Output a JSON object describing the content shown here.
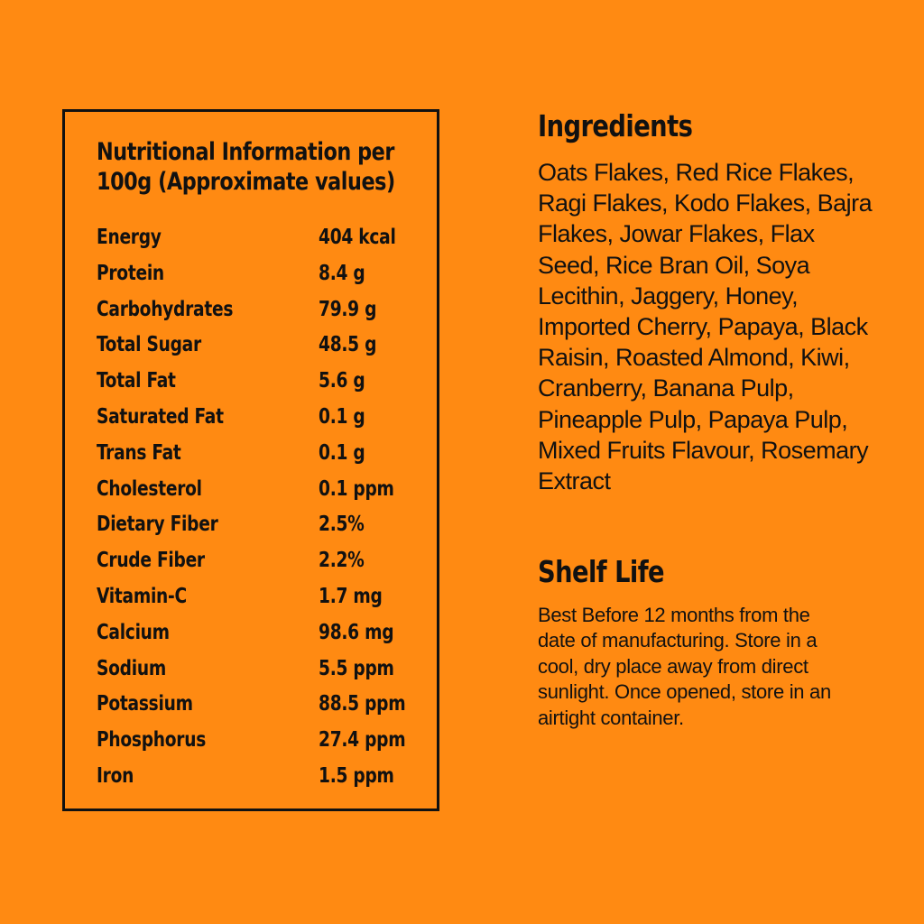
{
  "nutrition": {
    "title": "Nutritional Information per 100g (Approximate values)",
    "items": [
      {
        "name": "Energy",
        "value": "404 kcal"
      },
      {
        "name": "Protein",
        "value": "8.4 g"
      },
      {
        "name": "Carbohydrates",
        "value": "79.9 g"
      },
      {
        "name": "Total Sugar",
        "value": "48.5 g"
      },
      {
        "name": "Total Fat",
        "value": "5.6 g"
      },
      {
        "name": "Saturated Fat",
        "value": "0.1 g"
      },
      {
        "name": "Trans Fat",
        "value": "0.1 g"
      },
      {
        "name": "Cholesterol",
        "value": "0.1 ppm"
      },
      {
        "name": "Dietary Fiber",
        "value": "2.5%"
      },
      {
        "name": "Crude Fiber",
        "value": "2.2%"
      },
      {
        "name": "Vitamin-C",
        "value": "1.7 mg"
      },
      {
        "name": "Calcium",
        "value": "98.6 mg"
      },
      {
        "name": "Sodium",
        "value": "5.5 ppm"
      },
      {
        "name": "Potassium",
        "value": "88.5 ppm"
      },
      {
        "name": "Phosphorus",
        "value": "27.4 ppm"
      },
      {
        "name": "Iron",
        "value": "1.5 ppm"
      }
    ]
  },
  "ingredients": {
    "heading": "Ingredients",
    "text": "Oats Flakes, Red Rice Flakes, Ragi Flakes, Kodo Flakes, Bajra Flakes, Jowar Flakes, Flax Seed, Rice Bran Oil, Soya Lecithin, Jaggery, Honey, Imported Cherry, Papaya, Black Raisin, Roasted Almond, Kiwi, Cranberry, Banana Pulp, Pineapple Pulp, Papaya Pulp, Mixed Fruits Flavour, Rosemary Extract"
  },
  "shelf_life": {
    "heading": "Shelf Life",
    "text": "Best Before 12 months from the date of manufacturing. Store in a cool, dry place away from direct sunlight. Once opened, store in an airtight container."
  },
  "colors": {
    "background": "#FF8A12",
    "text": "#111111"
  }
}
